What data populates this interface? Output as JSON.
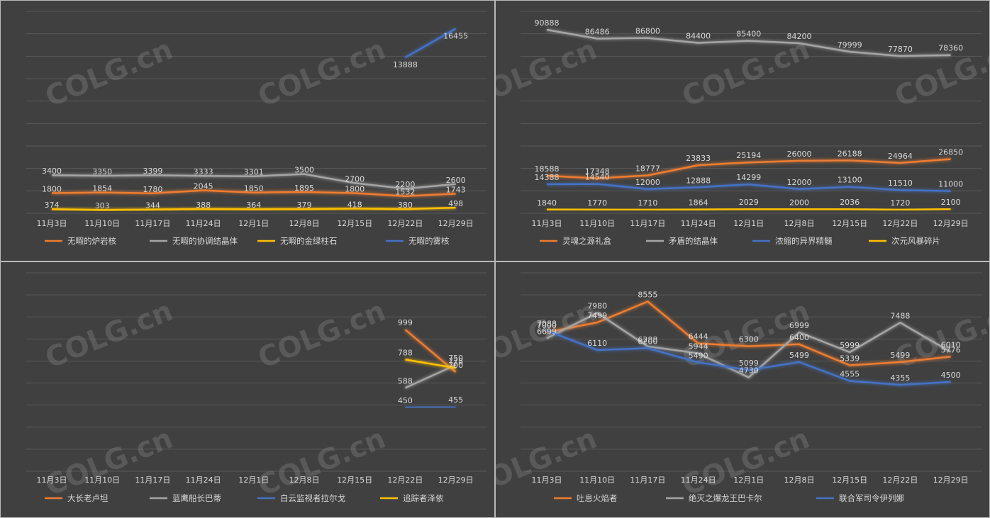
{
  "watermark": "COLG.cn",
  "chart_data": [
    {
      "type": "line",
      "categories": [
        "11月3日",
        "11月10日",
        "11月17日",
        "11月24日",
        "12月1日",
        "12月8日",
        "12月15日",
        "12月22日",
        "12月29日"
      ],
      "grid": true,
      "legend": "bottom",
      "ylim": [
        0,
        18000
      ],
      "series": [
        {
          "name": "无暇的炉岩核",
          "color": "#ed7d31",
          "values": [
            1800,
            1854,
            1780,
            2045,
            1850,
            1895,
            1800,
            1532,
            1743
          ]
        },
        {
          "name": "无暇的协调结晶体",
          "color": "#a5a5a5",
          "values": [
            3400,
            3350,
            3399,
            3333,
            3301,
            3500,
            2700,
            2200,
            2600
          ]
        },
        {
          "name": "无暇的金绿柱石",
          "color": "#ffc000",
          "values": [
            374,
            303,
            344,
            388,
            364,
            379,
            418,
            380,
            498
          ]
        },
        {
          "name": "无暇的雾核",
          "color": "#4472c4",
          "values": [
            null,
            null,
            null,
            null,
            null,
            null,
            null,
            13888,
            16455
          ]
        }
      ]
    },
    {
      "type": "line",
      "categories": [
        "11月3日",
        "11月10日",
        "11月17日",
        "11月24日",
        "12月1日",
        "12月8日",
        "12月15日",
        "12月22日",
        "12月29日"
      ],
      "grid": true,
      "legend": "bottom",
      "ylim": [
        0,
        100000
      ],
      "series": [
        {
          "name": "灵魂之源礼盒",
          "color": "#ed7d31",
          "values": [
            18588,
            17348,
            18777,
            23833,
            25194,
            26000,
            26188,
            24964,
            26850
          ]
        },
        {
          "name": "矛盾的结晶体",
          "color": "#a5a5a5",
          "values": [
            90888,
            86486,
            86800,
            84400,
            85400,
            84200,
            79999,
            77870,
            78360
          ]
        },
        {
          "name": "浓缩的异界精髓",
          "color": "#4472c4",
          "values": [
            14388,
            14540,
            12000,
            12888,
            14299,
            12000,
            13100,
            11510,
            11000
          ]
        },
        {
          "name": "次元风暴碎片",
          "color": "#ffc000",
          "values": [
            1840,
            1770,
            1710,
            1864,
            2029,
            2000,
            2036,
            1720,
            2100
          ]
        }
      ]
    },
    {
      "type": "line",
      "categories": [
        "11月3日",
        "11月10日",
        "11月17日",
        "11月24日",
        "12月1日",
        "12月8日",
        "12月15日",
        "12月22日",
        "12月29日"
      ],
      "grid": true,
      "legend": "bottom",
      "ylim": [
        0,
        1400
      ],
      "series": [
        {
          "name": "大长老卢坦",
          "color": "#ed7d31",
          "values": [
            null,
            null,
            null,
            null,
            null,
            null,
            null,
            999,
            700
          ]
        },
        {
          "name": "蓝鹰船长巴蒂",
          "color": "#a5a5a5",
          "values": [
            null,
            null,
            null,
            null,
            null,
            null,
            null,
            588,
            750
          ]
        },
        {
          "name": "白云监视者拉尔戈",
          "color": "#4472c4",
          "values": [
            null,
            null,
            null,
            null,
            null,
            null,
            null,
            450,
            455
          ]
        },
        {
          "name": "追踪者泽依",
          "color": "#ffc000",
          "values": [
            null,
            null,
            null,
            null,
            null,
            null,
            null,
            788,
            728
          ]
        }
      ]
    },
    {
      "type": "line",
      "categories": [
        "11月3日",
        "11月10日",
        "11月17日",
        "11月24日",
        "12月1日",
        "12月8日",
        "12月15日",
        "12月22日",
        "12月29日"
      ],
      "grid": true,
      "legend": "bottom",
      "ylim": [
        0,
        10000
      ],
      "series": [
        {
          "name": "吐息火焰者",
          "color": "#ed7d31",
          "values": [
            7000,
            7499,
            8555,
            6444,
            6300,
            6400,
            5339,
            5499,
            5776
          ]
        },
        {
          "name": "绝灭之爆龙王巴卡尔",
          "color": "#a5a5a5",
          "values": [
            6699,
            7980,
            6288,
            5944,
            4730,
            6999,
            5999,
            7488,
            6010
          ]
        },
        {
          "name": "联合军司令伊列娜",
          "color": "#4472c4",
          "values": [
            7088,
            6110,
            6200,
            5490,
            5099,
            5499,
            4555,
            4355,
            4500
          ]
        }
      ]
    }
  ]
}
